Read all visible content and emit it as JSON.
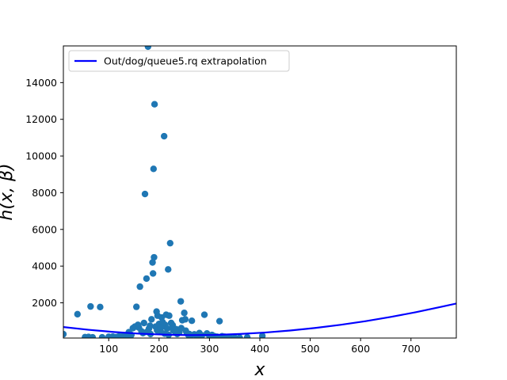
{
  "chart_data": {
    "type": "scatter",
    "xlabel": "x",
    "ylabel": "h(x, β)",
    "xlim": [
      10,
      790
    ],
    "ylim": [
      80,
      16000
    ],
    "x_ticks": [
      100,
      200,
      300,
      400,
      500,
      600,
      700
    ],
    "x_tick_labels": [
      "100",
      "200",
      "300",
      "400",
      "500",
      "600",
      "700"
    ],
    "y_ticks": [
      2000,
      4000,
      6000,
      8000,
      10000,
      12000,
      14000
    ],
    "y_tick_labels": [
      "2000",
      "4000",
      "6000",
      "8000",
      "10000",
      "12000",
      "14000"
    ],
    "grid": false,
    "legend_position": "top-left",
    "series": [
      {
        "name": "",
        "kind": "scatter",
        "color": "#1f77b4",
        "points": [
          [
            10,
            290
          ],
          [
            38,
            1380
          ],
          [
            53,
            130
          ],
          [
            60,
            140
          ],
          [
            64,
            1800
          ],
          [
            68,
            120
          ],
          [
            83,
            1770
          ],
          [
            87,
            120
          ],
          [
            100,
            150
          ],
          [
            108,
            160
          ],
          [
            115,
            130
          ],
          [
            120,
            170
          ],
          [
            125,
            160
          ],
          [
            130,
            190
          ],
          [
            135,
            210
          ],
          [
            140,
            180
          ],
          [
            145,
            250
          ],
          [
            148,
            620
          ],
          [
            152,
            700
          ],
          [
            155,
            1780
          ],
          [
            158,
            800
          ],
          [
            162,
            2880
          ],
          [
            165,
            450
          ],
          [
            170,
            900
          ],
          [
            172,
            7930
          ],
          [
            175,
            3320
          ],
          [
            178,
            15960
          ],
          [
            180,
            600
          ],
          [
            182,
            750
          ],
          [
            185,
            1100
          ],
          [
            187,
            4200
          ],
          [
            188,
            3600
          ],
          [
            189,
            9300
          ],
          [
            190,
            4480
          ],
          [
            191,
            12820
          ],
          [
            193,
            700
          ],
          [
            195,
            1520
          ],
          [
            197,
            1300
          ],
          [
            200,
            850
          ],
          [
            203,
            450
          ],
          [
            205,
            1200
          ],
          [
            207,
            950
          ],
          [
            210,
            11080
          ],
          [
            212,
            800
          ],
          [
            214,
            1350
          ],
          [
            216,
            600
          ],
          [
            218,
            3820
          ],
          [
            220,
            1300
          ],
          [
            222,
            5250
          ],
          [
            224,
            900
          ],
          [
            226,
            650
          ],
          [
            228,
            500
          ],
          [
            232,
            420
          ],
          [
            236,
            300
          ],
          [
            240,
            380
          ],
          [
            243,
            2080
          ],
          [
            246,
            1050
          ],
          [
            250,
            1450
          ],
          [
            252,
            1100
          ],
          [
            255,
            350
          ],
          [
            258,
            250
          ],
          [
            262,
            200
          ],
          [
            265,
            1020
          ],
          [
            270,
            280
          ],
          [
            275,
            180
          ],
          [
            280,
            350
          ],
          [
            285,
            220
          ],
          [
            290,
            1350
          ],
          [
            295,
            330
          ],
          [
            300,
            200
          ],
          [
            305,
            250
          ],
          [
            310,
            180
          ],
          [
            315,
            150
          ],
          [
            320,
            1000
          ],
          [
            325,
            180
          ],
          [
            330,
            150
          ],
          [
            340,
            130
          ],
          [
            350,
            110
          ],
          [
            360,
            100
          ],
          [
            375,
            120
          ],
          [
            405,
            200
          ],
          [
            140,
            400
          ],
          [
            160,
            650
          ],
          [
            168,
            350
          ],
          [
            176,
            420
          ],
          [
            183,
            300
          ],
          [
            196,
            500
          ],
          [
            204,
            650
          ],
          [
            211,
            320
          ],
          [
            219,
            250
          ],
          [
            227,
            780
          ],
          [
            234,
            560
          ],
          [
            244,
            620
          ],
          [
            253,
            480
          ],
          [
            260,
            300
          ]
        ]
      },
      {
        "name": "Out/dog/queue5.rq extrapolation",
        "kind": "line",
        "color": "#0000ff",
        "x": [
          10,
          60,
          110,
          160,
          210,
          260,
          310,
          360,
          410,
          460,
          510,
          560,
          610,
          660,
          710,
          760,
          790
        ],
        "y": [
          680,
          530,
          410,
          320,
          265,
          240,
          250,
          300,
          380,
          490,
          630,
          800,
          1000,
          1230,
          1490,
          1780,
          1960
        ]
      }
    ]
  }
}
